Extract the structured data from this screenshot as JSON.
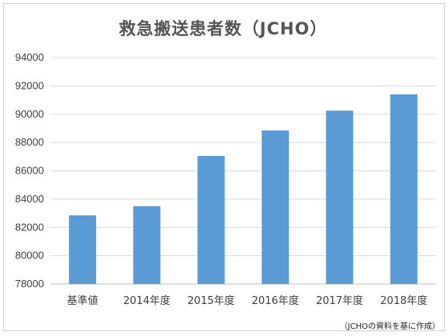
{
  "chart_data": {
    "type": "bar",
    "title": "救急搬送患者数（JCHO）",
    "categories": [
      "基準値",
      "2014年度",
      "2015年度",
      "2016年度",
      "2017年度",
      "2018年度"
    ],
    "values": [
      82850,
      83500,
      87050,
      88850,
      90250,
      91400
    ],
    "yticks": [
      "78000",
      "80000",
      "82000",
      "84000",
      "86000",
      "88000",
      "90000",
      "92000",
      "94000"
    ],
    "ylim": [
      78000,
      94000
    ],
    "grid": true,
    "bar_color": "#5b9bd5",
    "grid_color": "#d9d9d9",
    "xlabel": "",
    "ylabel": ""
  },
  "source_note": "（JCHOの資料を基に作成）"
}
